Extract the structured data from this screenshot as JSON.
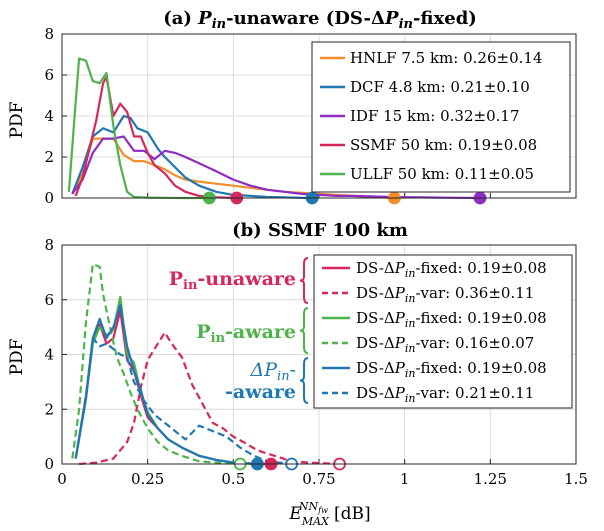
{
  "chart_data": [
    {
      "type": "line",
      "title": "(a) Pin-unaware (DS-ΔPin-fixed)",
      "title_parts": {
        "prefix": "(a) ",
        "var": "P",
        "sub": "in",
        "mid": "-unaware (DS-",
        "delta": "Δ",
        "var2": "P",
        "sub2": "in",
        "suffix": "-fixed)"
      },
      "xlabel": "",
      "ylabel": "PDF",
      "xlim": [
        0,
        1.5
      ],
      "ylim": [
        0,
        8
      ],
      "yticks": [
        0,
        2,
        4,
        6,
        8
      ],
      "grid": true,
      "legend_position": "top-right",
      "series": [
        {
          "name": "HNLF 7.5 km: 0.26±0.14",
          "color": "#f28e2b",
          "max_marker": 0.97,
          "x": [
            0.03,
            0.06,
            0.09,
            0.12,
            0.15,
            0.18,
            0.21,
            0.24,
            0.27,
            0.3,
            0.33,
            0.36,
            0.4,
            0.45,
            0.5,
            0.55,
            0.6,
            0.65,
            0.7,
            0.75,
            0.8,
            0.85,
            0.9,
            0.97
          ],
          "y": [
            0.2,
            1.2,
            2.9,
            2.9,
            2.9,
            2.1,
            1.8,
            1.8,
            1.6,
            1.4,
            1.1,
            0.9,
            0.8,
            0.7,
            0.6,
            0.5,
            0.4,
            0.3,
            0.25,
            0.2,
            0.15,
            0.1,
            0.05,
            0.0
          ]
        },
        {
          "name": "DCF 4.8 km: 0.21±0.10",
          "color": "#1f77b4",
          "max_marker": 0.73,
          "x": [
            0.03,
            0.06,
            0.09,
            0.12,
            0.15,
            0.18,
            0.2,
            0.22,
            0.25,
            0.28,
            0.3,
            0.33,
            0.36,
            0.4,
            0.45,
            0.5,
            0.55,
            0.6,
            0.65,
            0.7,
            0.73
          ],
          "y": [
            0.2,
            1.5,
            3.0,
            3.4,
            3.2,
            4.0,
            3.9,
            3.4,
            3.2,
            2.4,
            2.0,
            1.5,
            1.0,
            0.6,
            0.3,
            0.15,
            0.1,
            0.05,
            0.03,
            0.01,
            0.0
          ]
        },
        {
          "name": "IDF 15 km: 0.32±0.17",
          "color": "#8e2cc4",
          "max_marker": 1.22,
          "x": [
            0.03,
            0.06,
            0.09,
            0.12,
            0.15,
            0.18,
            0.21,
            0.24,
            0.27,
            0.3,
            0.33,
            0.36,
            0.4,
            0.45,
            0.5,
            0.55,
            0.6,
            0.65,
            0.7,
            0.75,
            0.8,
            0.85,
            0.9,
            0.95,
            1.0,
            1.05,
            1.1,
            1.15,
            1.22
          ],
          "y": [
            0.2,
            0.9,
            2.2,
            2.9,
            2.9,
            3.0,
            2.3,
            2.3,
            1.9,
            2.3,
            2.2,
            2.0,
            1.7,
            1.3,
            0.9,
            0.6,
            0.4,
            0.3,
            0.2,
            0.15,
            0.1,
            0.1,
            0.08,
            0.06,
            0.04,
            0.03,
            0.02,
            0.01,
            0.0
          ]
        },
        {
          "name": "SSMF 50 km: 0.19±0.08",
          "color": "#d6275a",
          "max_marker": 0.51,
          "x": [
            0.04,
            0.06,
            0.08,
            0.1,
            0.12,
            0.13,
            0.15,
            0.17,
            0.19,
            0.21,
            0.23,
            0.25,
            0.27,
            0.3,
            0.33,
            0.36,
            0.4,
            0.45,
            0.51
          ],
          "y": [
            0.1,
            1.0,
            2.4,
            3.8,
            5.6,
            5.9,
            4.0,
            4.6,
            4.2,
            3.0,
            3.0,
            2.2,
            1.6,
            1.2,
            0.6,
            0.3,
            0.1,
            0.03,
            0.0
          ]
        },
        {
          "name": "ULLF 50 km: 0.11±0.05",
          "color": "#4db34a",
          "max_marker": 0.43,
          "x": [
            0.02,
            0.04,
            0.05,
            0.07,
            0.09,
            0.11,
            0.13,
            0.15,
            0.17,
            0.19,
            0.21,
            0.25,
            0.3,
            0.35,
            0.43
          ],
          "y": [
            0.3,
            4.7,
            6.8,
            6.7,
            5.7,
            5.6,
            6.1,
            3.5,
            1.6,
            0.3,
            0.05,
            0.02,
            0.01,
            0.0,
            0.0
          ]
        }
      ]
    },
    {
      "type": "line",
      "title": "(b) SSMF 100 km",
      "xlabel": "E_MAX^{NN_fw} [dB]",
      "xlabel_parts": {
        "base": "E",
        "sub": "MAX",
        "sup": "NN",
        "supsub": "fw",
        "unit": "[dB]"
      },
      "ylabel": "PDF",
      "xlim": [
        0,
        1.5
      ],
      "ylim": [
        0,
        8
      ],
      "xticks": [
        0,
        0.25,
        0.5,
        0.75,
        1,
        1.25,
        1.5
      ],
      "xtick_labels": [
        "0",
        "0.25",
        "0.5",
        "0.75",
        "1",
        "1.25",
        "1.5"
      ],
      "yticks": [
        0,
        2,
        4,
        6,
        8
      ],
      "grid": true,
      "legend_position": "top-right",
      "groups": [
        {
          "label_html_parts": {
            "main": "P",
            "sub": "in",
            "rest": "-unaware"
          },
          "color": "#d6275a"
        },
        {
          "label_html_parts": {
            "main": "P",
            "sub": "in",
            "rest": "-aware"
          },
          "color": "#4db34a"
        },
        {
          "label_html_parts": {
            "line1": "ΔP",
            "sub": "in",
            "dash": "-",
            "line2": "-aware"
          },
          "color": "#1f77b4"
        }
      ],
      "series": [
        {
          "name": "DS-ΔPin-fixed: 0.19±0.08",
          "legend_text": {
            "pre": "DS-Δ",
            "var": "P",
            "sub": "in",
            "post": "-fixed:  0.19±0.08"
          },
          "color": "#d6275a",
          "dash": false,
          "max_marker": 0.61,
          "marker_filled": true,
          "x": [
            0.04,
            0.07,
            0.09,
            0.11,
            0.13,
            0.15,
            0.17,
            0.19,
            0.21,
            0.23,
            0.25,
            0.28,
            0.31,
            0.35,
            0.4,
            0.45,
            0.5,
            0.55,
            0.61
          ],
          "y": [
            0.2,
            2.5,
            4.5,
            5.1,
            4.4,
            4.6,
            5.6,
            3.8,
            3.4,
            2.5,
            1.7,
            1.3,
            0.9,
            0.6,
            0.3,
            0.15,
            0.05,
            0.02,
            0.0
          ]
        },
        {
          "name": "DS-ΔPin-var: 0.36±0.11",
          "legend_text": {
            "pre": "DS-Δ",
            "var": "P",
            "sub": "in",
            "post": "-var:  0.36±0.11"
          },
          "color": "#d6275a",
          "dash": true,
          "max_marker": 0.81,
          "marker_filled": false,
          "x": [
            0.05,
            0.1,
            0.15,
            0.19,
            0.21,
            0.23,
            0.25,
            0.27,
            0.3,
            0.32,
            0.35,
            0.38,
            0.41,
            0.44,
            0.47,
            0.5,
            0.53,
            0.57,
            0.62,
            0.67,
            0.72,
            0.81
          ],
          "y": [
            0.0,
            0.05,
            0.2,
            0.8,
            1.5,
            2.8,
            3.8,
            4.2,
            4.8,
            4.4,
            3.9,
            2.9,
            2.2,
            1.5,
            1.3,
            1.0,
            0.8,
            0.5,
            0.3,
            0.1,
            0.05,
            0.0
          ]
        },
        {
          "name": "DS-ΔPin-fixed: 0.19±0.08",
          "legend_text": {
            "pre": "DS-Δ",
            "var": "P",
            "sub": "in",
            "post": "-fixed:  0.19±0.08"
          },
          "color": "#4db34a",
          "dash": false,
          "max_marker": 0.57,
          "marker_filled": true,
          "x": [
            0.04,
            0.07,
            0.09,
            0.11,
            0.13,
            0.15,
            0.17,
            0.19,
            0.21,
            0.23,
            0.25,
            0.28,
            0.31,
            0.35,
            0.4,
            0.45,
            0.5,
            0.57
          ],
          "y": [
            0.2,
            2.4,
            4.4,
            5.0,
            4.7,
            4.9,
            6.1,
            4.0,
            3.7,
            2.6,
            1.9,
            1.3,
            0.9,
            0.6,
            0.3,
            0.15,
            0.05,
            0.0
          ]
        },
        {
          "name": "DS-ΔPin-var: 0.16±0.07",
          "legend_text": {
            "pre": "DS-Δ",
            "var": "P",
            "sub": "in",
            "post": "-var:  0.16±0.07"
          },
          "color": "#4db34a",
          "dash": true,
          "max_marker": 0.52,
          "marker_filled": false,
          "x": [
            0.03,
            0.05,
            0.07,
            0.09,
            0.11,
            0.12,
            0.14,
            0.16,
            0.18,
            0.2,
            0.22,
            0.25,
            0.28,
            0.31,
            0.35,
            0.4,
            0.45,
            0.52
          ],
          "y": [
            0.2,
            2.0,
            5.2,
            7.3,
            7.2,
            6.2,
            5.0,
            3.9,
            3.3,
            2.6,
            2.0,
            1.3,
            0.8,
            0.5,
            0.3,
            0.1,
            0.05,
            0.0
          ]
        },
        {
          "name": "DS-ΔPin-fixed: 0.19±0.08",
          "legend_text": {
            "pre": "DS-Δ",
            "var": "P",
            "sub": "in",
            "post": "-fixed:  0.19±0.08"
          },
          "color": "#1f77b4",
          "dash": false,
          "max_marker": 0.57,
          "marker_filled": true,
          "x": [
            0.04,
            0.07,
            0.09,
            0.11,
            0.13,
            0.15,
            0.17,
            0.19,
            0.21,
            0.23,
            0.25,
            0.28,
            0.31,
            0.35,
            0.4,
            0.45,
            0.5,
            0.57
          ],
          "y": [
            0.2,
            2.4,
            4.6,
            5.3,
            4.6,
            5.0,
            5.8,
            4.3,
            3.4,
            2.7,
            1.8,
            1.3,
            0.9,
            0.6,
            0.3,
            0.15,
            0.05,
            0.0
          ]
        },
        {
          "name": "DS-ΔPin-var: 0.21±0.11",
          "legend_text": {
            "pre": "DS-Δ",
            "var": "P",
            "sub": "in",
            "post": "-var:  0.21±0.11"
          },
          "color": "#1f77b4",
          "dash": true,
          "max_marker": 0.67,
          "marker_filled": false,
          "x": [
            0.04,
            0.07,
            0.09,
            0.11,
            0.13,
            0.15,
            0.17,
            0.19,
            0.21,
            0.24,
            0.27,
            0.3,
            0.33,
            0.36,
            0.4,
            0.44,
            0.48,
            0.52,
            0.56,
            0.6,
            0.67
          ],
          "y": [
            0.2,
            2.5,
            4.6,
            4.3,
            4.4,
            4.2,
            4.0,
            3.9,
            3.0,
            2.3,
            1.8,
            1.5,
            1.2,
            0.9,
            1.4,
            1.2,
            1.0,
            0.6,
            0.3,
            0.1,
            0.0
          ]
        }
      ]
    }
  ]
}
